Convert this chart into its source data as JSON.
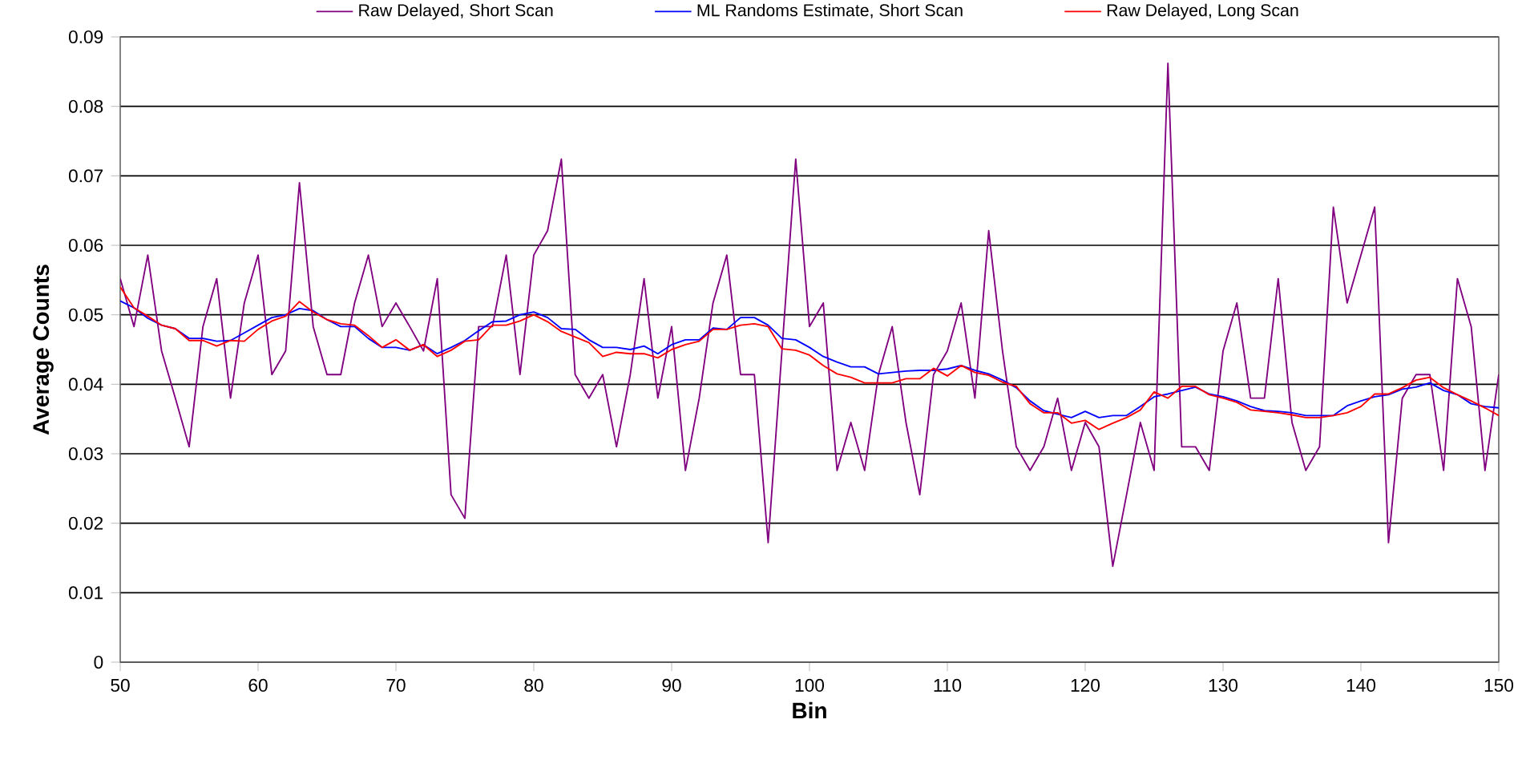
{
  "chart_data": {
    "type": "line",
    "xlabel": "Bin",
    "ylabel": "Average Counts",
    "x": [
      50,
      51,
      52,
      53,
      54,
      55,
      56,
      57,
      58,
      59,
      60,
      61,
      62,
      63,
      64,
      65,
      66,
      67,
      68,
      69,
      70,
      71,
      72,
      73,
      74,
      75,
      76,
      77,
      78,
      79,
      80,
      81,
      82,
      83,
      84,
      85,
      86,
      87,
      88,
      89,
      90,
      91,
      92,
      93,
      94,
      95,
      96,
      97,
      98,
      99,
      100,
      101,
      102,
      103,
      104,
      105,
      106,
      107,
      108,
      109,
      110,
      111,
      112,
      113,
      114,
      115,
      116,
      117,
      118,
      119,
      120,
      121,
      122,
      123,
      124,
      125,
      126,
      127,
      128,
      129,
      130,
      131,
      132,
      133,
      134,
      135,
      136,
      137,
      138,
      139,
      140,
      141,
      142,
      143,
      144,
      145,
      146,
      147,
      148,
      149,
      150
    ],
    "series": [
      {
        "name": "Raw Delayed, Short Scan",
        "color": "#800080",
        "values": [
          0.0552,
          0.0483,
          0.0586,
          0.0448,
          0.038,
          0.031,
          0.0483,
          0.0552,
          0.038,
          0.0517,
          0.0586,
          0.0414,
          0.0448,
          0.069,
          0.0483,
          0.0414,
          0.0414,
          0.0517,
          0.0586,
          0.0483,
          0.0517,
          0.0483,
          0.0448,
          0.0552,
          0.0241,
          0.0207,
          0.0483,
          0.0483,
          0.0586,
          0.0414,
          0.0586,
          0.0621,
          0.0724,
          0.0414,
          0.038,
          0.0414,
          0.031,
          0.0414,
          0.0552,
          0.038,
          0.0483,
          0.0276,
          0.038,
          0.0517,
          0.0586,
          0.0414,
          0.0414,
          0.0172,
          0.0448,
          0.0724,
          0.0483,
          0.0517,
          0.0276,
          0.0345,
          0.0276,
          0.0414,
          0.0483,
          0.0345,
          0.0241,
          0.0414,
          0.0448,
          0.0517,
          0.038,
          0.0621,
          0.0448,
          0.031,
          0.0276,
          0.031,
          0.038,
          0.0276,
          0.0345,
          0.031,
          0.0138,
          0.0241,
          0.0345,
          0.0276,
          0.0862,
          0.031,
          0.031,
          0.0276,
          0.0448,
          0.0517,
          0.038,
          0.038,
          0.0552,
          0.0345,
          0.0276,
          0.031,
          0.0655,
          0.0517,
          0.0586,
          0.0655,
          0.0172,
          0.038,
          0.0414,
          0.0414,
          0.0276,
          0.0552,
          0.0483,
          0.0276,
          0.0414
        ]
      },
      {
        "name": "ML Randoms Estimate, Short Scan",
        "color": "#0000ff",
        "values": [
          0.052,
          0.051,
          0.0495,
          0.0485,
          0.048,
          0.0466,
          0.0466,
          0.0462,
          0.0463,
          0.0474,
          0.0485,
          0.0496,
          0.05,
          0.0509,
          0.0506,
          0.0493,
          0.0483,
          0.0483,
          0.0466,
          0.0453,
          0.0453,
          0.0449,
          0.0457,
          0.0444,
          0.0453,
          0.0463,
          0.0477,
          0.049,
          0.0491,
          0.05,
          0.0504,
          0.0496,
          0.048,
          0.0479,
          0.0464,
          0.0453,
          0.0453,
          0.045,
          0.0455,
          0.0444,
          0.0457,
          0.0464,
          0.0464,
          0.0481,
          0.0479,
          0.0496,
          0.0496,
          0.0485,
          0.0466,
          0.0464,
          0.0453,
          0.044,
          0.0432,
          0.0425,
          0.0425,
          0.0415,
          0.0417,
          0.0419,
          0.042,
          0.042,
          0.0422,
          0.0427,
          0.042,
          0.0415,
          0.0406,
          0.0395,
          0.0376,
          0.0362,
          0.0357,
          0.0352,
          0.0361,
          0.0352,
          0.0355,
          0.0355,
          0.0368,
          0.0382,
          0.0386,
          0.0391,
          0.0396,
          0.0386,
          0.0382,
          0.0376,
          0.0368,
          0.0362,
          0.0361,
          0.0359,
          0.0355,
          0.0355,
          0.0355,
          0.0369,
          0.0376,
          0.0382,
          0.0385,
          0.0393,
          0.0396,
          0.0402,
          0.0391,
          0.0385,
          0.0372,
          0.0368,
          0.0366
        ]
      },
      {
        "name": "Raw Delayed, Long Scan",
        "color": "#ff0000",
        "values": [
          0.054,
          0.051,
          0.0498,
          0.0485,
          0.048,
          0.0463,
          0.0463,
          0.0455,
          0.0463,
          0.0462,
          0.0479,
          0.0491,
          0.0498,
          0.0519,
          0.0504,
          0.0493,
          0.0487,
          0.0485,
          0.047,
          0.0453,
          0.0464,
          0.0449,
          0.0457,
          0.044,
          0.0449,
          0.0462,
          0.0464,
          0.0485,
          0.0485,
          0.0491,
          0.05,
          0.049,
          0.0476,
          0.0468,
          0.046,
          0.044,
          0.0446,
          0.0444,
          0.0444,
          0.0438,
          0.045,
          0.0457,
          0.0462,
          0.0479,
          0.0479,
          0.0485,
          0.0487,
          0.0483,
          0.0451,
          0.0449,
          0.0442,
          0.0427,
          0.0415,
          0.041,
          0.0402,
          0.0402,
          0.0402,
          0.0408,
          0.0408,
          0.0423,
          0.0412,
          0.0427,
          0.0417,
          0.0413,
          0.0403,
          0.0397,
          0.0372,
          0.0359,
          0.0359,
          0.0344,
          0.0348,
          0.0335,
          0.0344,
          0.0352,
          0.0363,
          0.0389,
          0.038,
          0.0397,
          0.0397,
          0.0385,
          0.038,
          0.0374,
          0.0363,
          0.0361,
          0.0359,
          0.0356,
          0.0352,
          0.0352,
          0.0355,
          0.0359,
          0.0368,
          0.0386,
          0.0386,
          0.0395,
          0.0406,
          0.041,
          0.0395,
          0.0385,
          0.0376,
          0.0366,
          0.0355
        ]
      }
    ],
    "xlim": [
      50,
      150
    ],
    "xticks": [
      50,
      60,
      70,
      80,
      90,
      100,
      110,
      120,
      130,
      140,
      150
    ],
    "ylim": [
      0,
      0.09
    ],
    "yticks": [
      0,
      0.01,
      0.02,
      0.03,
      0.04,
      0.05,
      0.06,
      0.07,
      0.08,
      0.09
    ],
    "grid": "y",
    "legend": "top"
  }
}
